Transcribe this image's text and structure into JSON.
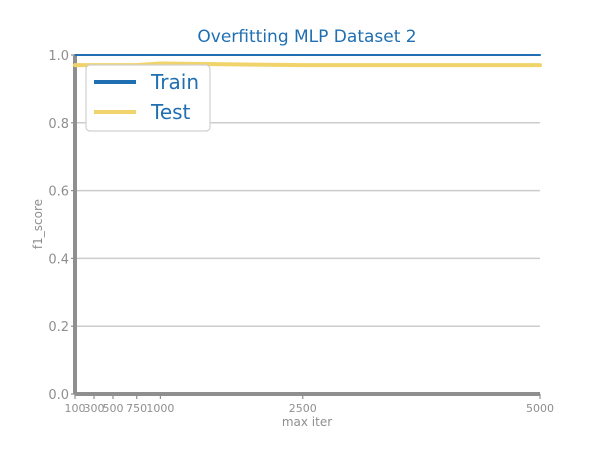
{
  "chart_data": {
    "type": "line",
    "title": "Overfitting MLP Dataset 2",
    "xlabel": "max iter",
    "ylabel": "f1_score",
    "x": [
      100,
      300,
      500,
      750,
      1000,
      2500,
      5000
    ],
    "x_tick_labels": [
      "100",
      "300",
      "500",
      "750",
      "1000",
      "2500",
      "5000"
    ],
    "xlim": [
      100,
      5000
    ],
    "ylim": [
      0.0,
      1.0
    ],
    "y_ticks": [
      0.0,
      0.2,
      0.4,
      0.6,
      0.8,
      1.0
    ],
    "y_tick_labels": [
      "0.0",
      "0.2",
      "0.4",
      "0.6",
      "0.8",
      "1.0"
    ],
    "grid": "horizontal",
    "legend_position": "top-left",
    "series": [
      {
        "name": "Train",
        "color": "#1f6fb2",
        "values": [
          1.0,
          1.0,
          1.0,
          1.0,
          1.0,
          1.0,
          1.0
        ]
      },
      {
        "name": "Test",
        "color": "#f0d36a",
        "values": [
          0.97,
          0.97,
          0.97,
          0.97,
          0.975,
          0.97,
          0.97
        ]
      }
    ],
    "colors": {
      "title": "#1f6fb2",
      "axis_text": "#8f8f8f",
      "axis_line": "#8f8f8f",
      "grid": "#cccccc",
      "legend_text": "#1f6fb2"
    }
  }
}
